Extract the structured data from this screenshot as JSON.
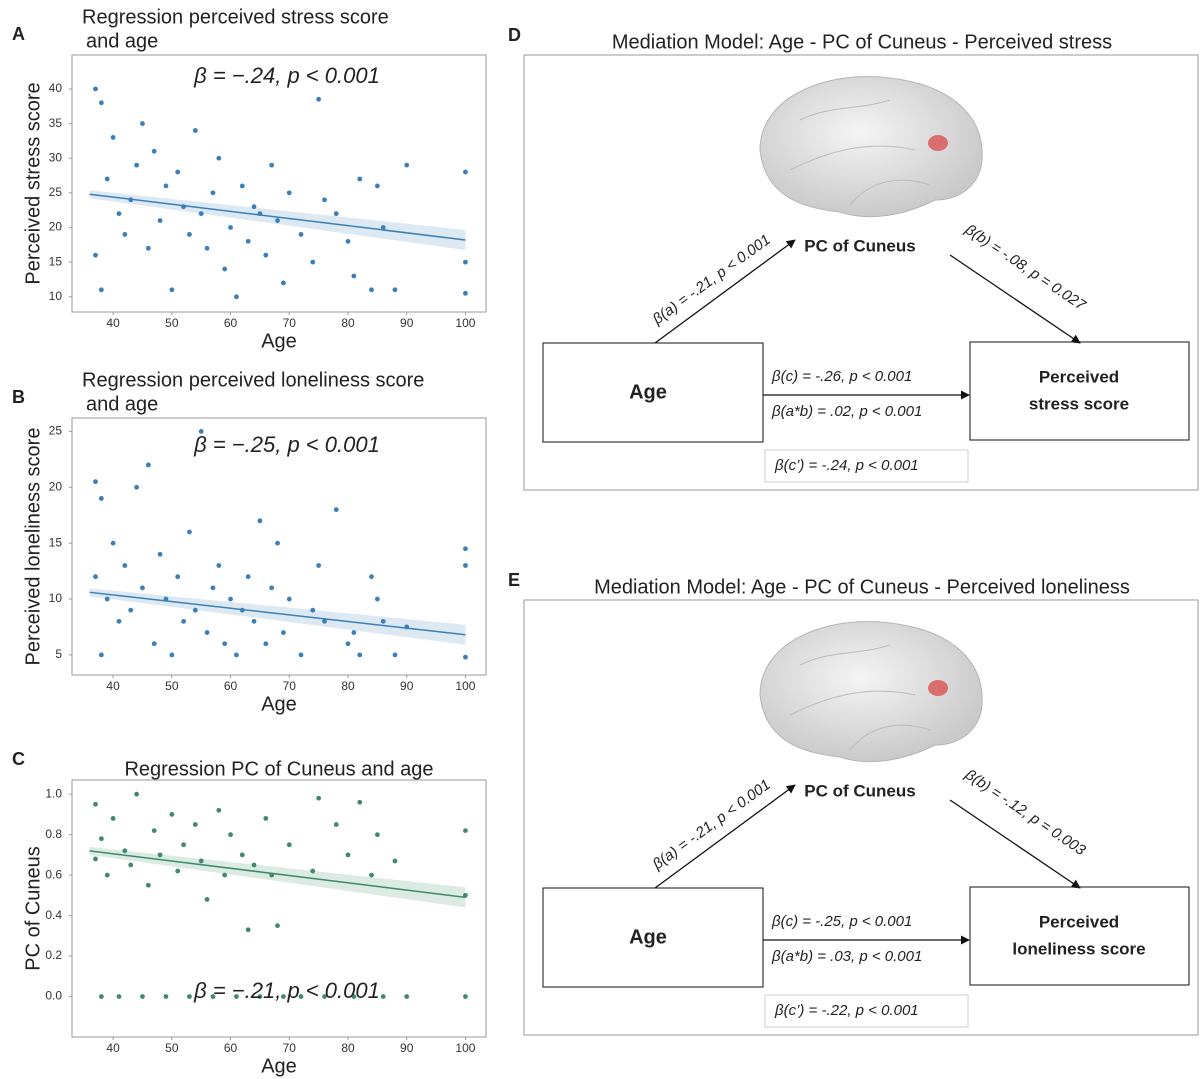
{
  "chart_data": [
    {
      "type": "scatter",
      "label": "A",
      "title": [
        "Regression perceived stress score",
        "and age"
      ],
      "annotation": "β = −.24, p < 0.001",
      "x_label": "Age",
      "y_label": "Perceived stress score",
      "color": "#3b7fb6",
      "x": [
        37,
        37,
        38,
        38,
        39,
        40,
        41,
        42,
        43,
        44,
        45,
        46,
        47,
        48,
        49,
        50,
        51,
        52,
        53,
        54,
        55,
        56,
        57,
        58,
        59,
        60,
        61,
        62,
        63,
        64,
        65,
        66,
        67,
        68,
        69,
        70,
        72,
        74,
        75,
        76,
        78,
        80,
        81,
        82,
        84,
        85,
        86,
        88,
        90,
        100,
        100,
        100
      ],
      "values": [
        40,
        16,
        38,
        11,
        27,
        33,
        22,
        19,
        24,
        29,
        35,
        17,
        31,
        21,
        26,
        11,
        28,
        23,
        19,
        34,
        22,
        17,
        25,
        30,
        14,
        20,
        10,
        26,
        18,
        23,
        22,
        16,
        29,
        21,
        12,
        25,
        19,
        15,
        38.5,
        24,
        22,
        18,
        13,
        27,
        11,
        26,
        20,
        11,
        29,
        28,
        15,
        10.5
      ],
      "fit": {
        "x": [
          36,
          100
        ],
        "y": [
          24.8,
          18.2
        ]
      },
      "xlim": [
        33,
        103.5
      ],
      "xticks": [
        40,
        50,
        60,
        70,
        80,
        90,
        100
      ],
      "ylim": [
        7.8,
        44.9
      ],
      "yticks": [
        10,
        15,
        20,
        25,
        30,
        35,
        40
      ],
      "grid": false
    },
    {
      "type": "scatter",
      "label": "B",
      "title": [
        "Regression perceived loneliness score",
        "and age"
      ],
      "annotation": "β = −.25, p < 0.001",
      "x_label": "Age",
      "y_label": "Perceived loneliness score",
      "color": "#3b7fb6",
      "x": [
        37,
        37,
        38,
        38,
        39,
        40,
        41,
        42,
        43,
        44,
        45,
        46,
        47,
        48,
        49,
        50,
        51,
        52,
        53,
        54,
        55,
        56,
        57,
        58,
        59,
        60,
        61,
        62,
        63,
        64,
        65,
        66,
        67,
        68,
        69,
        70,
        72,
        74,
        75,
        76,
        78,
        80,
        81,
        82,
        84,
        85,
        86,
        88,
        90,
        100,
        100,
        100
      ],
      "values": [
        20.5,
        12,
        19,
        5,
        10,
        15,
        8,
        13,
        9,
        20,
        11,
        22,
        6,
        14,
        10,
        5,
        12,
        8,
        16,
        9,
        25,
        7,
        11,
        13,
        6,
        10,
        5,
        9,
        12,
        8,
        17,
        6,
        11,
        15,
        7,
        10,
        5,
        9,
        13,
        8,
        18,
        6,
        7,
        5,
        12,
        10,
        8,
        5,
        7.5,
        14.5,
        13,
        4.8
      ],
      "fit": {
        "x": [
          36,
          100
        ],
        "y": [
          10.6,
          6.8
        ]
      },
      "xlim": [
        33,
        103.5
      ],
      "xticks": [
        40,
        50,
        60,
        70,
        80,
        90,
        100
      ],
      "ylim": [
        3.2,
        26.2
      ],
      "yticks": [
        5,
        10,
        15,
        20,
        25
      ],
      "grid": false
    },
    {
      "type": "scatter",
      "label": "C",
      "title": [
        "Regression PC of Cuneus and age"
      ],
      "annotation": "β = −.21, p < 0.001",
      "x_label": "Age",
      "y_label": "PC of Cuneus",
      "color": "#3f8a6c",
      "x": [
        37,
        37,
        38,
        38,
        39,
        40,
        41,
        42,
        43,
        44,
        45,
        46,
        47,
        48,
        49,
        50,
        51,
        52,
        53,
        54,
        55,
        56,
        57,
        58,
        59,
        60,
        61,
        62,
        63,
        64,
        65,
        66,
        67,
        68,
        69,
        70,
        72,
        74,
        75,
        76,
        78,
        80,
        81,
        82,
        84,
        85,
        86,
        88,
        90,
        100,
        100,
        100
      ],
      "values": [
        0.95,
        0.68,
        0,
        0.78,
        0.6,
        0.88,
        0,
        0.72,
        0.65,
        1.0,
        0,
        0.55,
        0.82,
        0.7,
        0,
        0.9,
        0.62,
        0.75,
        0,
        0.85,
        0.67,
        0.48,
        0,
        0.92,
        0.6,
        0.8,
        0,
        0.7,
        0.33,
        0.65,
        0,
        0.88,
        0.6,
        0.35,
        0,
        0.75,
        0,
        0.62,
        0.98,
        0,
        0.85,
        0.7,
        0,
        0.96,
        0.6,
        0.8,
        0,
        0.67,
        0,
        0.82,
        0.5,
        0
      ],
      "fit": {
        "x": [
          36,
          100
        ],
        "y": [
          0.72,
          0.49
        ]
      },
      "xlim": [
        33,
        103.5
      ],
      "xticks": [
        40,
        50,
        60,
        70,
        80,
        90,
        100
      ],
      "ylim": [
        -0.2,
        1.07
      ],
      "yticks": [
        {
          "value": 0,
          "label": "0.0"
        },
        0.2,
        0.4,
        0.6,
        0.8,
        {
          "value": 1,
          "label": "1.0"
        }
      ],
      "grid": false
    }
  ],
  "diagrams": [
    {
      "label": "D",
      "title": "Mediation Model: Age - PC of Cuneus - Perceived stress",
      "mediator": "PC of Cuneus",
      "predictor": "Age",
      "outcome": [
        "Perceived",
        "stress score"
      ],
      "path_a": "β(a) = -.21, p < 0.001",
      "path_b": "β(b) = -.08, p = 0.027",
      "path_c": "β(c) = -.26,    p < 0.001",
      "path_ab": "β(a*b) = .02, p < 0.001",
      "path_c_prime": "β(c’) = -.24, p < 0.001"
    },
    {
      "label": "E",
      "title": "Mediation Model: Age - PC of Cuneus - Perceived loneliness",
      "mediator": "PC of Cuneus",
      "predictor": "Age",
      "outcome": [
        "Perceived",
        "loneliness score"
      ],
      "path_a": "β(a) = -.21, p < 0.001",
      "path_b": "β(b) = -.12, p = 0.003",
      "path_c": "β(c) = -.25,    p < 0.001",
      "path_ab": "β(a*b) = .03, p < 0.001",
      "path_c_prime": "β(c’) = -.22, p < 0.001"
    }
  ]
}
